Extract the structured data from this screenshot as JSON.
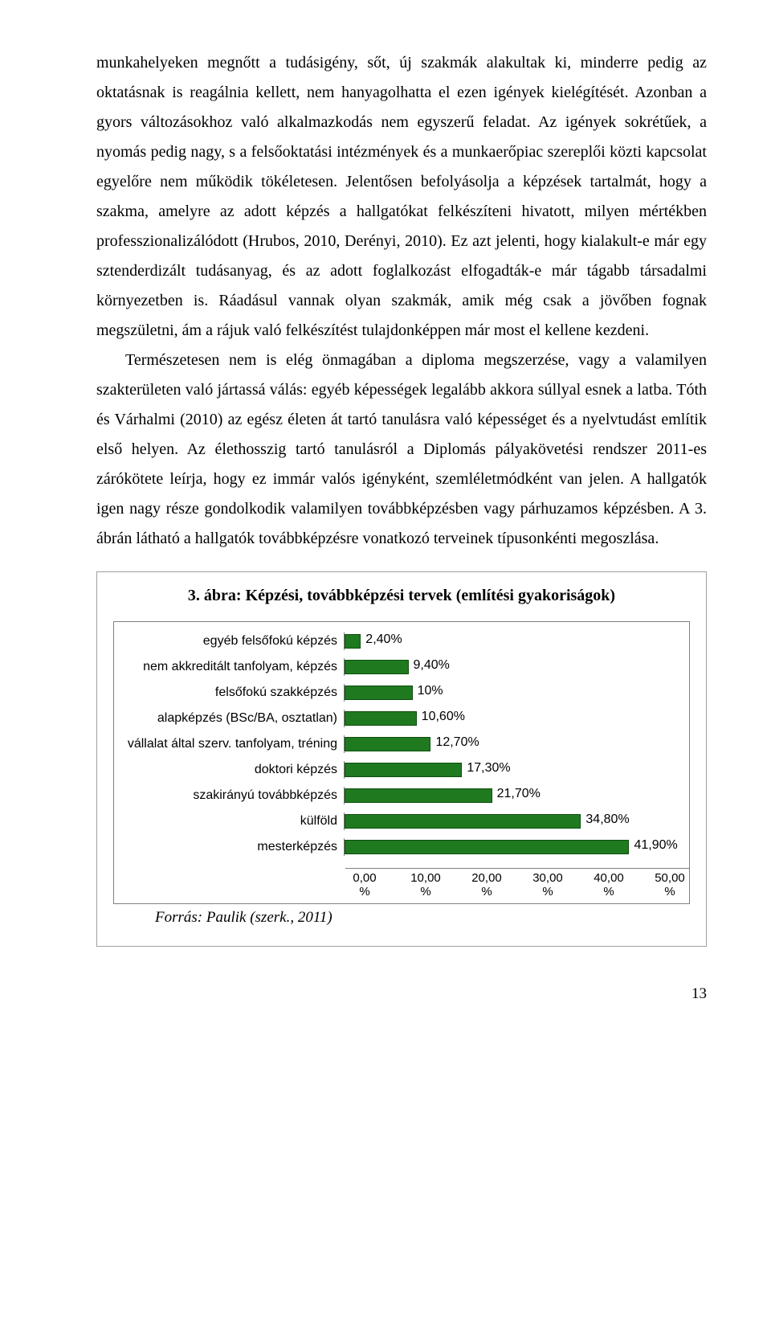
{
  "paragraphs": {
    "p1": "munkahelyeken megnőtt a tudásigény, sőt, új szakmák alakultak ki, minderre pedig az oktatásnak is reagálnia kellett, nem hanyagolhatta el ezen igények kielégítését. Azonban a gyors változásokhoz való alkalmazkodás nem egyszerű feladat. Az igények sokrétűek, a nyomás pedig nagy, s a felsőoktatási intézmények és a munkaerőpiac szereplői közti kapcsolat egyelőre nem működik tökéletesen. Jelentősen befolyásolja a képzések tartalmát, hogy a szakma, amelyre az adott képzés a hallgatókat felkészíteni hivatott, milyen mértékben professzionalizálódott (Hrubos, 2010, Derényi, 2010). Ez azt jelenti, hogy kialakult-e már egy sztenderdizált tudásanyag, és az adott foglalkozást elfogadták-e már tágabb társadalmi környezetben is. Ráadásul vannak olyan szakmák, amik még csak a jövőben fognak megszületni, ám a rájuk való felkészítést tulajdonképpen már most el kellene kezdeni.",
    "p2": "Természetesen nem is elég önmagában a diploma megszerzése, vagy a valamilyen szakterületen való jártassá válás: egyéb képességek legalább akkora súllyal esnek a latba. Tóth és Várhalmi (2010) az egész életen át tartó tanulásra való képességet és a nyelvtudást említik első helyen. Az élethosszig tartó tanulásról a Diplomás pályakövetési rendszer 2011-es zárókötete leírja, hogy ez immár valós igényként, szemléletmódként van jelen. A hallgatók igen nagy része gondolkodik valamilyen továbbképzésben vagy párhuzamos képzésben. A 3. ábrán látható a hallgatók továbbképzésre vonatkozó terveinek típusonkénti megoszlása."
  },
  "chart": {
    "title": "3. ábra: Képzési, továbbképzési tervek (említési gyakoriságok)",
    "bar_color": "#1f7a1f",
    "bar_border": "#0d4d0d",
    "background": "#ffffff",
    "max": 50,
    "bars": [
      {
        "label": "egyéb felsőfokú képzés",
        "value": 2.4,
        "value_label": "2,40%"
      },
      {
        "label": "nem akkreditált tanfolyam, képzés",
        "value": 9.4,
        "value_label": "9,40%"
      },
      {
        "label": "felsőfokú szakképzés",
        "value": 10,
        "value_label": "10%"
      },
      {
        "label": "alapképzés (BSc/BA, osztatlan)",
        "value": 10.6,
        "value_label": "10,60%"
      },
      {
        "label": "vállalat által szerv. tanfolyam, tréning",
        "value": 12.7,
        "value_label": "12,70%"
      },
      {
        "label": "doktori képzés",
        "value": 17.3,
        "value_label": "17,30%"
      },
      {
        "label": "szakirányú továbbképzés",
        "value": 21.7,
        "value_label": "21,70%"
      },
      {
        "label": "külföld",
        "value": 34.8,
        "value_label": "34,80%"
      },
      {
        "label": "mesterképzés",
        "value": 41.9,
        "value_label": "41,90%"
      }
    ],
    "x_ticks": [
      "0,00%",
      "10,00%",
      "20,00%",
      "30,00%",
      "40,00%",
      "50,00%"
    ]
  },
  "source": "Forrás: Paulik (szerk., 2011)",
  "page_number": "13"
}
